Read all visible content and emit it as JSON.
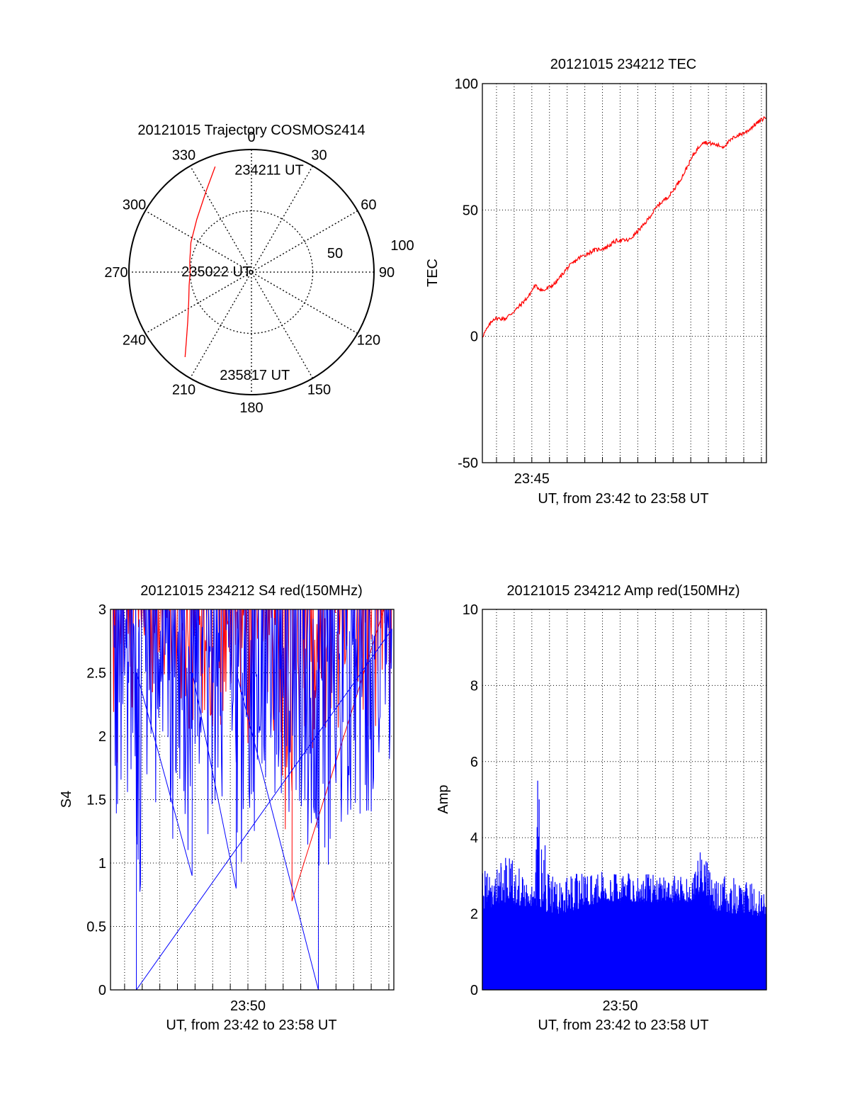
{
  "chart_data": [
    {
      "type": "polar",
      "title": "20121015 Trajectory COSMOS2414",
      "angle_labels": [
        "0",
        "30",
        "60",
        "90",
        "120",
        "150",
        "180",
        "210",
        "240",
        "270",
        "300",
        "330"
      ],
      "radius_labels": [
        "50",
        "100"
      ],
      "rlim": [
        0,
        100
      ],
      "trajectory_color": "#ff0000",
      "trajectory": {
        "azimuth_deg": [
          341,
          331,
          314,
          296,
          279,
          270,
          258,
          244,
          232,
          223,
          218
        ],
        "radius": [
          91,
          76,
          62,
          55,
          51,
          50,
          52,
          57,
          66,
          78,
          88
        ]
      },
      "annotations": [
        {
          "text": "234211 UT",
          "az": 0,
          "r": 84
        },
        {
          "text": "235022 UT",
          "az": 274,
          "r": 17
        },
        {
          "text": "235817 UT",
          "az": 188,
          "r": 84
        }
      ]
    },
    {
      "type": "line",
      "title": "20121015 234212 TEC",
      "ylabel": "TEC",
      "xlabel": "UT, from 23:42 to 23:58 UT",
      "xlim": [
        "23:42:12",
        "23:58:17"
      ],
      "ylim": [
        -50,
        100
      ],
      "yticks": [
        "-50",
        "0",
        "50",
        "100"
      ],
      "xtick_labels": [
        {
          "t": "23:45",
          "label": "23:45"
        }
      ],
      "grid": true,
      "series": [
        {
          "color": "#ff0000",
          "x": [
            "23:42:12",
            "23:42:50",
            "23:43:30",
            "23:44:10",
            "23:44:50",
            "23:45:10",
            "23:45:40",
            "23:46:20",
            "23:47:00",
            "23:47:40",
            "23:48:30",
            "23:49:10",
            "23:49:50",
            "23:50:30",
            "23:51:20",
            "23:52:10",
            "23:52:50",
            "23:53:30",
            "23:54:10",
            "23:54:40",
            "23:55:20",
            "23:55:50",
            "23:56:30",
            "23:57:10",
            "23:57:40",
            "23:58:17"
          ],
          "y": [
            0,
            7,
            7,
            11,
            16,
            20,
            18,
            21,
            27,
            31,
            34,
            35,
            38,
            38,
            44,
            52,
            56,
            63,
            72,
            77,
            76,
            75,
            79,
            81,
            84,
            87
          ]
        }
      ]
    },
    {
      "type": "line",
      "title": "20121015 234212 S4 red(150MHz)",
      "ylabel": "S4",
      "xlabel": "UT, from 23:42 to 23:58 UT",
      "xlim": [
        "23:42:12",
        "23:58:17"
      ],
      "ylim": [
        0,
        3
      ],
      "yticks": [
        "0",
        "0.5",
        "1",
        "1.5",
        "2",
        "2.5",
        "3"
      ],
      "xtick_labels": [
        {
          "t": "23:50",
          "label": "23:50"
        }
      ],
      "grid": true,
      "series": [
        {
          "color": "#ff0000",
          "x": [
            "23:42:20",
            "23:43:00",
            "23:43:40",
            "23:44:20",
            "23:45:10",
            "23:46:00",
            "23:46:50",
            "23:47:40",
            "23:48:30",
            "23:49:20",
            "23:50:10",
            "23:51:00",
            "23:51:40",
            "23:52:10",
            "23:52:30",
            "23:53:10",
            "23:54:00",
            "23:54:50",
            "23:55:40",
            "23:56:30",
            "23:57:20",
            "23:58:10"
          ],
          "y_low": [
            1.2,
            1.9,
            2.2,
            2.3,
            2.2,
            2.1,
            2.0,
            2.1,
            2.0,
            1.9,
            1.8,
            2.0,
            2.0,
            1.1,
            0.7,
            1.8,
            1.9,
            2.0,
            2.0,
            2.1,
            2.0,
            2.2
          ],
          "y_high": [
            3,
            3,
            3,
            3,
            3,
            3,
            3,
            3,
            3,
            3,
            3,
            3,
            3,
            3,
            3,
            3,
            3,
            3,
            3,
            3,
            3,
            3
          ]
        },
        {
          "color": "#0000ff",
          "x": [
            "23:42:20",
            "23:43:00",
            "23:43:40",
            "23:44:20",
            "23:45:10",
            "23:46:00",
            "23:46:50",
            "23:47:40",
            "23:48:30",
            "23:49:20",
            "23:50:10",
            "23:51:00",
            "23:51:40",
            "23:52:10",
            "23:52:30",
            "23:53:10",
            "23:54:00",
            "23:54:50",
            "23:55:40",
            "23:56:30",
            "23:57:20",
            "23:58:10"
          ],
          "y_low": [
            1.1,
            1.0,
            0.0,
            1.2,
            1.0,
            1.2,
            0.9,
            1.2,
            1.1,
            0.8,
            1.1,
            1.2,
            1.2,
            1.2,
            1.3,
            1.3,
            0.0,
            1.1,
            1.2,
            1.3,
            1.3,
            1.4
          ],
          "y_high": [
            3,
            3,
            3,
            3,
            3,
            3,
            3,
            3,
            3,
            3,
            3,
            3,
            3,
            3,
            3,
            3,
            3,
            3,
            3,
            3,
            3,
            3
          ]
        }
      ]
    },
    {
      "type": "bar",
      "title": "20121015 234212 Amp red(150MHz)",
      "ylabel": "Amp",
      "xlabel": "UT, from 23:42 to 23:58 UT",
      "xlim": [
        "23:42:12",
        "23:58:17"
      ],
      "ylim": [
        0,
        10
      ],
      "yticks": [
        "0",
        "2",
        "4",
        "6",
        "8",
        "10"
      ],
      "xtick_labels": [
        {
          "t": "23:50",
          "label": "23:50"
        }
      ],
      "grid": true,
      "series": [
        {
          "color": "#0000ff",
          "x": [
            "23:42:12",
            "23:43:00",
            "23:43:40",
            "23:44:20",
            "23:45:10",
            "23:45:20",
            "23:46:00",
            "23:47:00",
            "23:48:00",
            "23:49:00",
            "23:50:00",
            "23:51:00",
            "23:52:00",
            "23:53:00",
            "23:54:00",
            "23:54:40",
            "23:55:00",
            "23:55:30",
            "23:56:00",
            "23:57:00",
            "23:58:17"
          ],
          "y_base": [
            2.1,
            2.2,
            2.3,
            2.2,
            2.2,
            2.2,
            2.0,
            2.0,
            2.2,
            2.3,
            2.3,
            2.3,
            2.3,
            2.3,
            2.3,
            2.6,
            2.2,
            2.0,
            2.0,
            2.0,
            1.9
          ],
          "y_peak": [
            3.1,
            3.3,
            3.6,
            3.2,
            3.0,
            5.5,
            3.0,
            3.0,
            3.1,
            3.2,
            3.1,
            3.1,
            3.1,
            3.0,
            3.0,
            3.8,
            3.3,
            2.9,
            3.0,
            2.9,
            2.8
          ]
        }
      ]
    }
  ]
}
